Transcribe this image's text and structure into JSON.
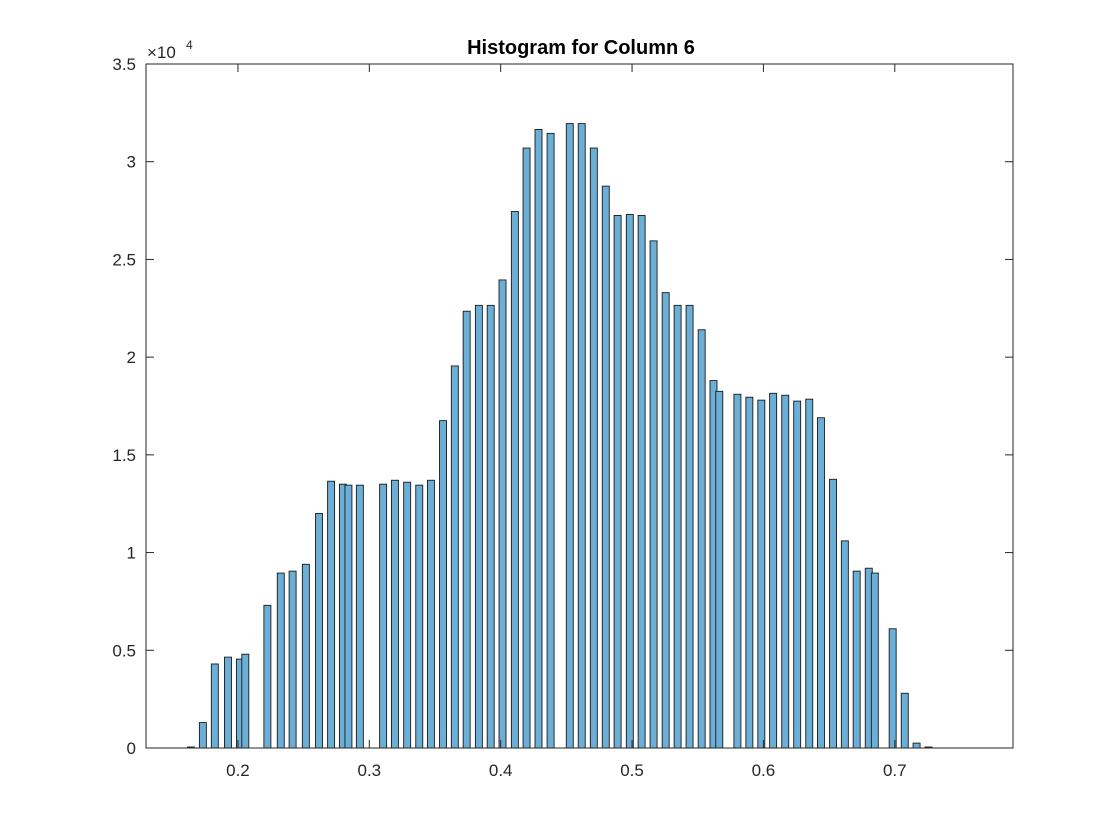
{
  "chart_data": {
    "type": "bar",
    "title": "Histogram for Column 6",
    "xlabel": "",
    "ylabel": "",
    "xlim": [
      0.13,
      0.79
    ],
    "ylim": [
      0,
      35000
    ],
    "y_multiplier": {
      "base": "×10",
      "exponent": "4"
    },
    "x_ticks": [
      0.2,
      0.3,
      0.4,
      0.5,
      0.6,
      0.7
    ],
    "x_tick_labels": [
      "0.2",
      "0.3",
      "0.4",
      "0.5",
      "0.6",
      "0.7"
    ],
    "y_ticks": [
      0,
      5000,
      10000,
      15000,
      20000,
      25000,
      30000,
      35000
    ],
    "y_tick_labels": [
      "0",
      "0.5",
      "1",
      "1.5",
      "2",
      "2.5",
      "3",
      "3.5"
    ],
    "grid": false,
    "bar_color": "#6baed6",
    "bar_edge_color": "#1a1a1a",
    "x": [
      0.1642,
      0.1733,
      0.1824,
      0.1924,
      0.2015,
      0.2056,
      0.2224,
      0.2326,
      0.2416,
      0.2517,
      0.2617,
      0.2709,
      0.2799,
      0.2841,
      0.2928,
      0.3105,
      0.3195,
      0.3288,
      0.338,
      0.3469,
      0.3561,
      0.3651,
      0.3741,
      0.3834,
      0.3924,
      0.4014,
      0.4108,
      0.4197,
      0.4288,
      0.438,
      0.4526,
      0.4617,
      0.4709,
      0.48,
      0.489,
      0.4983,
      0.5073,
      0.5164,
      0.5256,
      0.5347,
      0.5438,
      0.553,
      0.562,
      0.5664,
      0.5802,
      0.5893,
      0.5984,
      0.6074,
      0.6166,
      0.6257,
      0.6349,
      0.6438,
      0.653,
      0.662,
      0.671,
      0.6802,
      0.6848,
      0.6984,
      0.7076,
      0.7166,
      0.7257,
      0.744,
      0.7531,
      0.7576
    ],
    "values": [
      50,
      1300,
      4300,
      4650,
      4550,
      4800,
      7300,
      8950,
      9050,
      9400,
      12000,
      13650,
      13500,
      13450,
      13450,
      13500,
      13700,
      13600,
      13450,
      13700,
      16750,
      19550,
      22350,
      22650,
      22650,
      23950,
      27450,
      30700,
      31650,
      31450,
      31950,
      31950,
      30700,
      28750,
      27250,
      27300,
      27250,
      25950,
      23300,
      22650,
      22650,
      21400,
      18800,
      18250,
      18100,
      17950,
      17800,
      18150,
      18050,
      17750,
      17850,
      16900,
      13750,
      10600,
      9050,
      9200,
      8950,
      6100,
      2800,
      250,
      50,
      0,
      0,
      0
    ]
  }
}
